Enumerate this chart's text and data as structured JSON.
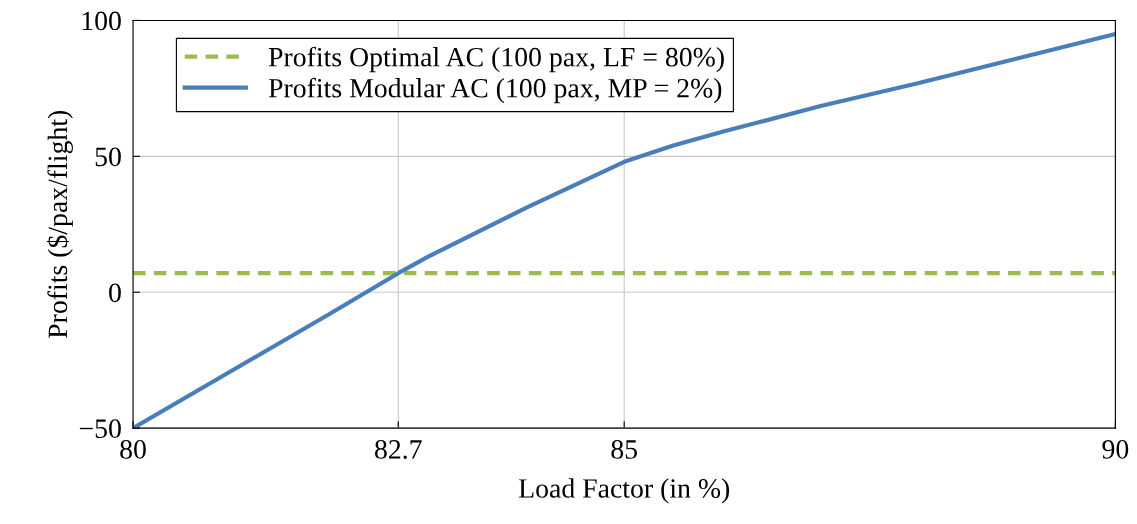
{
  "chart_data": {
    "type": "line",
    "xlabel": "Load Factor (in %)",
    "ylabel": "Profits ($/pax/flight)",
    "xlim": [
      80,
      90
    ],
    "ylim": [
      -50,
      100
    ],
    "xticks": [
      80,
      82.7,
      85,
      90
    ],
    "yticks": [
      {
        "value": -50,
        "label": "−50"
      },
      0,
      50,
      100
    ],
    "grid": true,
    "legend": "top left",
    "series": [
      {
        "name": "Profits Optimal AC (100 pax, LF = 80%)",
        "color": "#9bbb4a",
        "line_style": "dashed",
        "x": [
          80,
          90
        ],
        "values": [
          7,
          7
        ]
      },
      {
        "name": "Profits Modular AC (100 pax, MP = 2%)",
        "color": "#4a7ebb",
        "line_style": "solid",
        "x": [
          80,
          81,
          82,
          82.7,
          83,
          84,
          85,
          85.5,
          86,
          87,
          88,
          89,
          90
        ],
        "values": [
          -50,
          -29,
          -8,
          7,
          13,
          31,
          48,
          54,
          59,
          68.5,
          77,
          86,
          95
        ]
      }
    ]
  }
}
